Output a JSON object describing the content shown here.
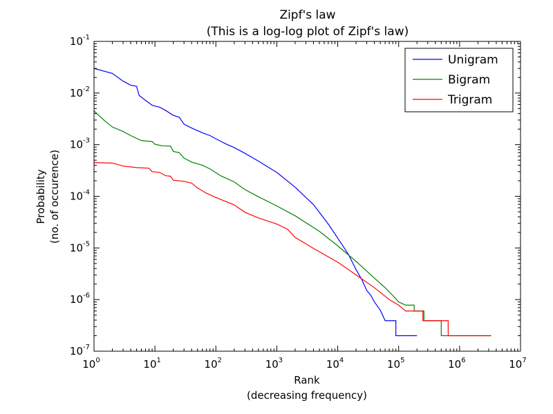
{
  "chart_data": {
    "type": "line",
    "title": "Zipf's law",
    "subtitle": "(This is a log-log plot of Zipf's law)",
    "xlabel": "Rank",
    "xlabel_sub": "(decreasing frequency)",
    "ylabel": "Probability",
    "ylabel_sub": "(no. of occurence)",
    "xscale": "log",
    "yscale": "log",
    "xlim": [
      1,
      10000000
    ],
    "ylim": [
      1e-07,
      0.1
    ],
    "grid": false,
    "legend_position": "top-right",
    "x_ticks": [
      {
        "base": "10",
        "exp": "0",
        "value": 1
      },
      {
        "base": "10",
        "exp": "1",
        "value": 10
      },
      {
        "base": "10",
        "exp": "2",
        "value": 100
      },
      {
        "base": "10",
        "exp": "3",
        "value": 1000
      },
      {
        "base": "10",
        "exp": "4",
        "value": 10000
      },
      {
        "base": "10",
        "exp": "5",
        "value": 100000
      },
      {
        "base": "10",
        "exp": "6",
        "value": 1000000
      },
      {
        "base": "10",
        "exp": "7",
        "value": 10000000
      }
    ],
    "y_ticks": [
      {
        "base": "10",
        "exp": "-7",
        "value": 1e-07
      },
      {
        "base": "10",
        "exp": "-6",
        "value": 1e-06
      },
      {
        "base": "10",
        "exp": "-5",
        "value": 1e-05
      },
      {
        "base": "10",
        "exp": "-4",
        "value": 0.0001
      },
      {
        "base": "10",
        "exp": "-3",
        "value": 0.001
      },
      {
        "base": "10",
        "exp": "-2",
        "value": 0.01
      },
      {
        "base": "10",
        "exp": "-1",
        "value": 0.1
      }
    ],
    "series": [
      {
        "name": "Unigram",
        "color": "#0000ff",
        "points": [
          [
            1,
            0.03
          ],
          [
            2,
            0.024
          ],
          [
            3,
            0.017
          ],
          [
            4,
            0.0142
          ],
          [
            5,
            0.0135
          ],
          [
            5.5,
            0.009
          ],
          [
            7,
            0.0072
          ],
          [
            9,
            0.0058
          ],
          [
            12,
            0.0053
          ],
          [
            15,
            0.0046
          ],
          [
            20,
            0.0037
          ],
          [
            25,
            0.0034
          ],
          [
            30,
            0.0025
          ],
          [
            40,
            0.0021
          ],
          [
            60,
            0.0017
          ],
          [
            80,
            0.0015
          ],
          [
            100,
            0.0013
          ],
          [
            150,
            0.00102
          ],
          [
            200,
            0.00088
          ],
          [
            300,
            0.00068
          ],
          [
            500,
            0.00048
          ],
          [
            1000,
            0.00029
          ],
          [
            2000,
            0.00015
          ],
          [
            4000,
            6.9e-05
          ],
          [
            7000,
            2.9e-05
          ],
          [
            10000,
            1.55e-05
          ],
          [
            15000,
            7.5e-06
          ],
          [
            20000,
            3.8e-06
          ],
          [
            25000,
            2.4e-06
          ],
          [
            30000,
            1.5e-06
          ],
          [
            35000,
            1.2e-06
          ],
          [
            40000,
            9e-07
          ],
          [
            50000,
            6.2e-07
          ],
          [
            60000,
            3.9e-07
          ],
          [
            90000,
            3.9e-07
          ],
          [
            90000,
            2e-07
          ],
          [
            200000,
            2e-07
          ]
        ]
      },
      {
        "name": "Bigram",
        "color": "#008000",
        "points": [
          [
            1,
            0.0045
          ],
          [
            1.5,
            0.0029
          ],
          [
            2,
            0.0022
          ],
          [
            3,
            0.0018
          ],
          [
            4,
            0.0015
          ],
          [
            6,
            0.0012
          ],
          [
            9,
            0.00115
          ],
          [
            10,
            0.00102
          ],
          [
            13,
            0.00095
          ],
          [
            18,
            0.00094
          ],
          [
            20,
            0.00074
          ],
          [
            25,
            0.0007
          ],
          [
            30,
            0.00055
          ],
          [
            40,
            0.00046
          ],
          [
            60,
            0.0004
          ],
          [
            80,
            0.00034
          ],
          [
            120,
            0.00025
          ],
          [
            200,
            0.00019
          ],
          [
            300,
            0.000135
          ],
          [
            500,
            9.8e-05
          ],
          [
            1000,
            6.5e-05
          ],
          [
            2000,
            4.2e-05
          ],
          [
            5000,
            2.1e-05
          ],
          [
            10000,
            1.1e-05
          ],
          [
            20000,
            5.5e-06
          ],
          [
            40000,
            2.6e-06
          ],
          [
            60000,
            1.7e-06
          ],
          [
            80000,
            1.2e-06
          ],
          [
            100000,
            9e-07
          ],
          [
            130000,
            7.8e-07
          ],
          [
            180000,
            7.8e-07
          ],
          [
            180000,
            6e-07
          ],
          [
            260000,
            6e-07
          ],
          [
            260000,
            3.9e-07
          ],
          [
            500000,
            3.9e-07
          ],
          [
            500000,
            2e-07
          ],
          [
            3300000,
            2e-07
          ]
        ]
      },
      {
        "name": "Trigram",
        "color": "#ff0000",
        "points": [
          [
            1,
            0.00045
          ],
          [
            2,
            0.00044
          ],
          [
            3,
            0.000385
          ],
          [
            5,
            0.00036
          ],
          [
            8,
            0.00035
          ],
          [
            9,
            0.0003
          ],
          [
            12,
            0.00029
          ],
          [
            15,
            0.00025
          ],
          [
            18,
            0.000245
          ],
          [
            20,
            0.000205
          ],
          [
            30,
            0.000195
          ],
          [
            40,
            0.00018
          ],
          [
            50,
            0.000145
          ],
          [
            70,
            0.000115
          ],
          [
            100,
            9.5e-05
          ],
          [
            200,
            6.8e-05
          ],
          [
            300,
            4.9e-05
          ],
          [
            500,
            3.8e-05
          ],
          [
            1000,
            2.9e-05
          ],
          [
            1500,
            2.3e-05
          ],
          [
            2000,
            1.6e-05
          ],
          [
            4000,
            9.8e-06
          ],
          [
            10000,
            5.3e-06
          ],
          [
            20000,
            3e-06
          ],
          [
            40000,
            1.7e-06
          ],
          [
            70000,
            1e-06
          ],
          [
            100000,
            7.8e-07
          ],
          [
            130000,
            6e-07
          ],
          [
            250000,
            6e-07
          ],
          [
            250000,
            3.9e-07
          ],
          [
            650000,
            3.9e-07
          ],
          [
            650000,
            2e-07
          ],
          [
            3300000,
            2e-07
          ]
        ]
      }
    ]
  }
}
